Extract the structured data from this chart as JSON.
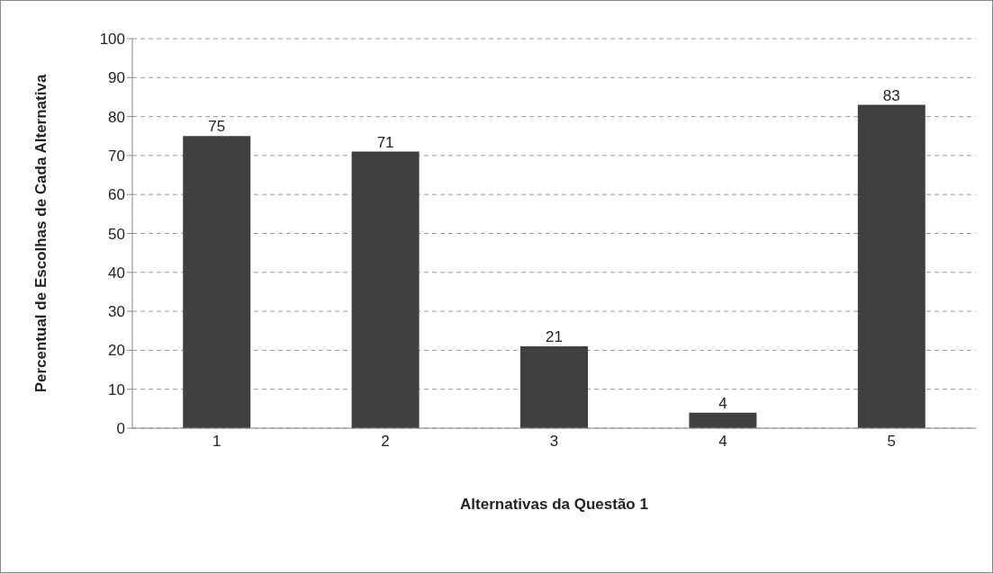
{
  "chart_data": {
    "type": "bar",
    "xlabel": "Alternativas da Questão 1",
    "ylabel": "Percentual de Escolhas de Cada Alternativa",
    "categories": [
      "1",
      "2",
      "3",
      "4",
      "5"
    ],
    "values": [
      75,
      71,
      21,
      4,
      83
    ],
    "color": "#404040",
    "ylim": [
      0,
      100
    ],
    "yticks": [
      0,
      10,
      20,
      30,
      40,
      50,
      60,
      70,
      80,
      90,
      100
    ],
    "grid": "y",
    "data_labels": true
  }
}
